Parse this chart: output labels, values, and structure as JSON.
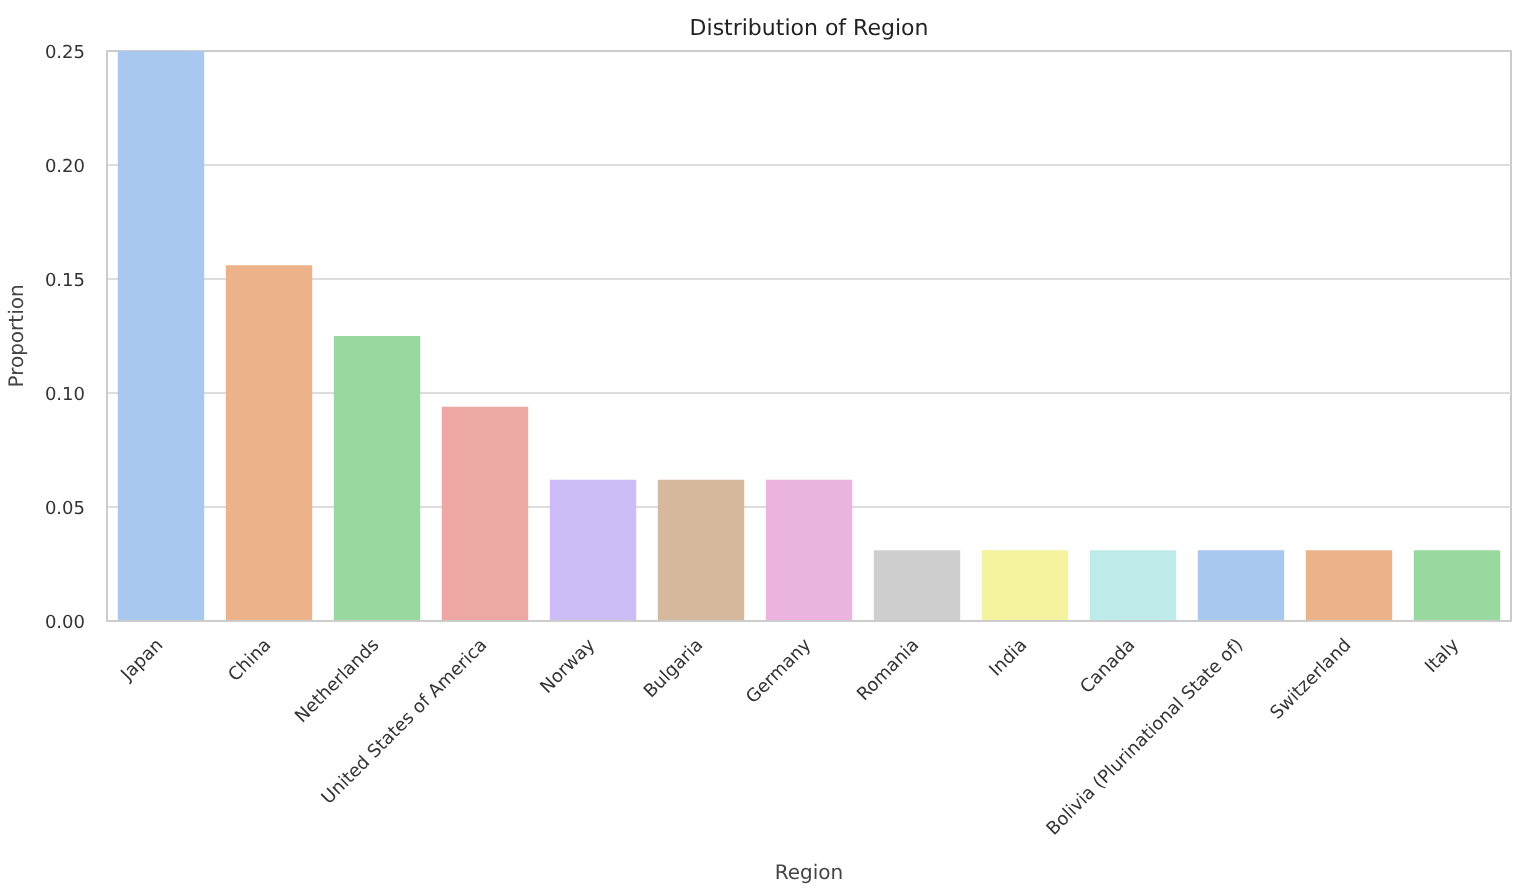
{
  "chart_data": {
    "type": "bar",
    "title": "Distribution of Region",
    "xlabel": "Region",
    "ylabel": "Proportion",
    "categories": [
      "Japan",
      "China",
      "Netherlands",
      "United States of America",
      "Norway",
      "Bulgaria",
      "Germany",
      "Romania",
      "India",
      "Canada",
      "Bolivia (Plurinational State of)",
      "Switzerland",
      "Italy"
    ],
    "values": [
      0.25,
      0.156,
      0.125,
      0.094,
      0.062,
      0.062,
      0.062,
      0.031,
      0.031,
      0.031,
      0.031,
      0.031,
      0.031
    ],
    "colors": [
      "#a9c8f0",
      "#ecb38a",
      "#98d9a0",
      "#eea8a4",
      "#ccbdf6",
      "#d6b99c",
      "#ebb3e0",
      "#cfcfcf",
      "#f5f3a0",
      "#bfeaea",
      "#a9c8f0",
      "#ecb38a",
      "#98d9a0"
    ],
    "ylim": [
      0,
      0.25
    ],
    "yticks": [
      {
        "value": 0,
        "label": "0.00"
      },
      {
        "value": 0.05,
        "label": "0.05"
      },
      {
        "value": 0.1,
        "label": "0.10"
      },
      {
        "value": 0.15,
        "label": "0.15"
      },
      {
        "value": 0.2,
        "label": "0.20"
      },
      {
        "value": 0.25,
        "label": "0.25"
      }
    ],
    "grid": "y"
  }
}
